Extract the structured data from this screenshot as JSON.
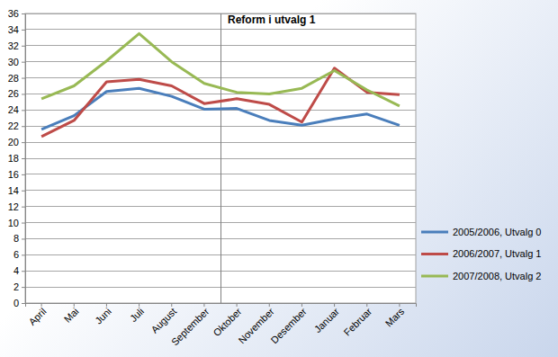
{
  "chart_data": {
    "type": "line",
    "categories": [
      "April",
      "Mai",
      "Juni",
      "Juli",
      "August",
      "September",
      "Oktober",
      "November",
      "Desember",
      "Januar",
      "Februar",
      "Mars"
    ],
    "series": [
      {
        "name": "2005/2006, Utvalg 0",
        "color": "#4a7ebb",
        "values": [
          21.6,
          23.3,
          26.3,
          26.7,
          25.7,
          24.1,
          24.2,
          22.7,
          22.1,
          22.9,
          23.5,
          22.1
        ]
      },
      {
        "name": "2006/2007, Utvalg 1",
        "color": "#be4b48",
        "values": [
          20.7,
          22.7,
          27.5,
          27.8,
          27.0,
          24.8,
          25.4,
          24.7,
          22.5,
          29.2,
          26.2,
          25.9
        ]
      },
      {
        "name": "2007/2008, Utvalg 2",
        "color": "#98b954",
        "values": [
          25.4,
          27.0,
          30.1,
          33.5,
          30.0,
          27.3,
          26.2,
          26.0,
          26.7,
          28.9,
          26.5,
          24.5
        ]
      }
    ],
    "annotations": [
      {
        "text": "Reform i utvalg 1",
        "x": "Oktober"
      }
    ],
    "ylim": [
      0,
      36
    ],
    "yticks": [
      0,
      2,
      4,
      6,
      8,
      10,
      12,
      14,
      16,
      18,
      20,
      22,
      24,
      26,
      28,
      30,
      32,
      34,
      36
    ],
    "grid": true,
    "legend": "right"
  }
}
